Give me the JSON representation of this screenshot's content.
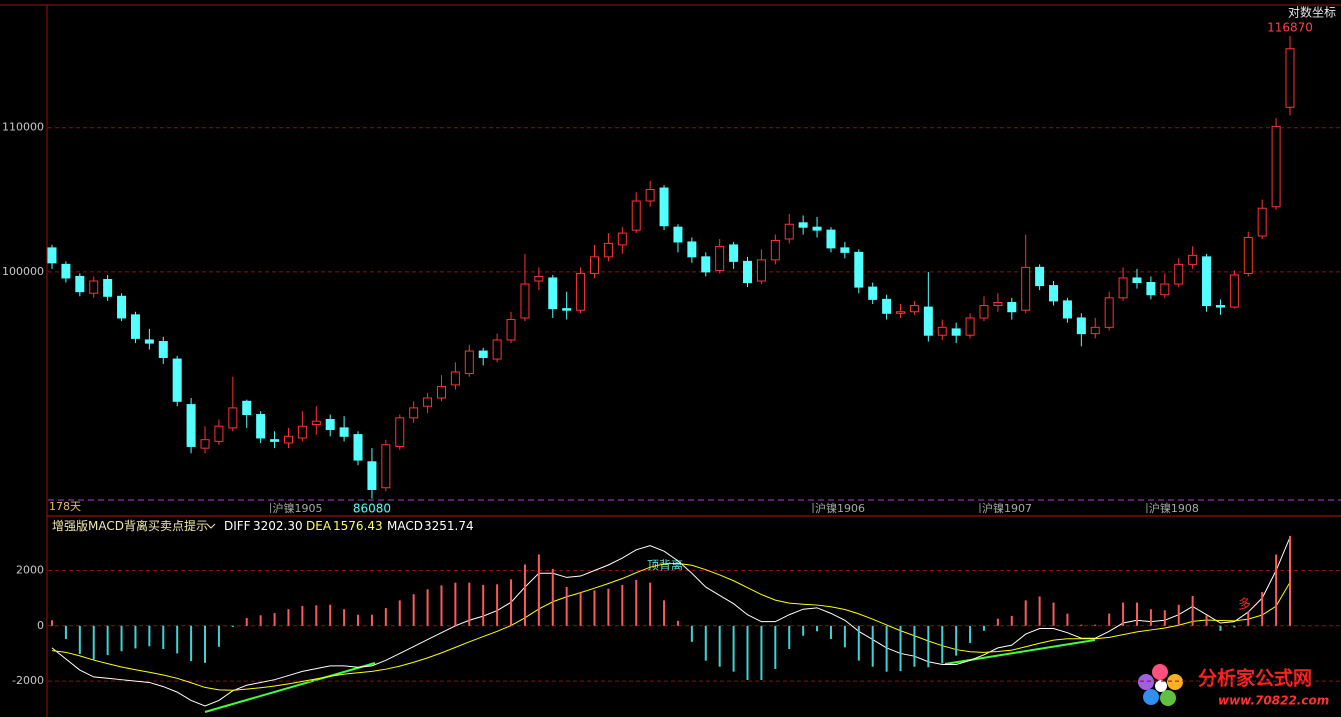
{
  "chart_data": [
    {
      "type": "candlestick",
      "log_scale": true,
      "scale_label": "对数坐标",
      "period_label": "178天",
      "up_color": "#ff3232",
      "down_color": "#54ffff",
      "grid": true,
      "ylim": [
        86000,
        119300
      ],
      "yticks": [
        100000,
        110000
      ],
      "categories": [
        null,
        null,
        null,
        null,
        null,
        null,
        null,
        null,
        null,
        null,
        null,
        null,
        null,
        null,
        null,
        null,
        "沪镍1905",
        null,
        null,
        null,
        null,
        null,
        null,
        null,
        null,
        null,
        null,
        null,
        null,
        null,
        null,
        null,
        null,
        null,
        null,
        null,
        null,
        null,
        null,
        null,
        null,
        null,
        null,
        null,
        null,
        null,
        null,
        null,
        null,
        null,
        null,
        null,
        null,
        null,
        null,
        "沪镍1906",
        null,
        null,
        null,
        null,
        null,
        null,
        null,
        null,
        null,
        null,
        null,
        "沪镍1907",
        null,
        null,
        null,
        null,
        null,
        null,
        null,
        null,
        null,
        null,
        null,
        "沪镍1908",
        null,
        null,
        null,
        null,
        null,
        null,
        null,
        null,
        null,
        null
      ],
      "open": [
        101600,
        100500,
        99700,
        98600,
        99500,
        98400,
        97200,
        95600,
        95500,
        94400,
        91600,
        89000,
        89400,
        90200,
        91800,
        91000,
        89500,
        89300,
        89600,
        90400,
        90700,
        90200,
        89800,
        88200,
        86700,
        89100,
        90800,
        91500,
        92000,
        92800,
        93500,
        94900,
        94400,
        95600,
        97000,
        99400,
        99600,
        97600,
        97500,
        99900,
        101000,
        101800,
        102800,
        104800,
        105700,
        103000,
        102000,
        101000,
        100100,
        101800,
        100700,
        99400,
        100800,
        102200,
        103300,
        103000,
        102800,
        101600,
        101300,
        99000,
        98200,
        97300,
        97400,
        97700,
        95900,
        96300,
        95900,
        97000,
        97800,
        98000,
        97500,
        100300,
        99100,
        98100,
        97000,
        96000,
        96400,
        98300,
        99600,
        99300,
        98500,
        99200,
        100500,
        101000,
        97800,
        97700,
        99900,
        102400,
        104400,
        111500
      ],
      "high": [
        101800,
        100700,
        99900,
        99700,
        99800,
        98600,
        97400,
        96300,
        95800,
        94600,
        92000,
        90300,
        90700,
        93300,
        91900,
        91200,
        90000,
        90200,
        91200,
        91500,
        91000,
        90900,
        90000,
        89000,
        89500,
        91000,
        91800,
        92300,
        93400,
        94200,
        95300,
        95100,
        96000,
        97400,
        101200,
        100300,
        99800,
        98700,
        100300,
        101800,
        102600,
        103000,
        105400,
        106200,
        105900,
        103200,
        102300,
        101300,
        102200,
        102000,
        101000,
        101500,
        102500,
        103900,
        103800,
        103700,
        103000,
        102000,
        101500,
        99300,
        98500,
        97900,
        98100,
        100000,
        96900,
        96700,
        97300,
        98400,
        98600,
        98300,
        102500,
        100500,
        99400,
        98300,
        97300,
        97000,
        98700,
        100300,
        100200,
        99700,
        99900,
        100900,
        101700,
        101200,
        98200,
        100100,
        102700,
        104900,
        110700,
        116870
      ],
      "low": [
        100200,
        99300,
        98400,
        98300,
        98100,
        96800,
        95400,
        95000,
        94100,
        91500,
        88700,
        88700,
        89200,
        90000,
        90200,
        89300,
        89000,
        89000,
        89400,
        89800,
        89700,
        89400,
        88000,
        86080,
        86500,
        88900,
        90500,
        91100,
        91800,
        92500,
        93300,
        94000,
        94200,
        95400,
        96800,
        98800,
        97000,
        96900,
        97300,
        99600,
        100700,
        101200,
        102600,
        104400,
        102800,
        101300,
        100600,
        99700,
        99900,
        100200,
        99000,
        99200,
        100500,
        101900,
        102500,
        102300,
        101300,
        100900,
        98600,
        97900,
        96900,
        97000,
        97200,
        95500,
        95600,
        95400,
        95700,
        96800,
        97400,
        96900,
        97300,
        98800,
        97800,
        96700,
        95200,
        95700,
        96200,
        98100,
        98900,
        98200,
        98300,
        99000,
        100200,
        97400,
        97200,
        97600,
        99700,
        102200,
        104200,
        110900
      ],
      "close": [
        100600,
        99600,
        98700,
        99400,
        98400,
        97000,
        95700,
        95400,
        94500,
        91800,
        89100,
        89500,
        90300,
        91400,
        91000,
        89600,
        89400,
        89700,
        90300,
        90600,
        90100,
        89700,
        88300,
        86600,
        89200,
        90800,
        91400,
        92000,
        92700,
        93600,
        94900,
        94500,
        95600,
        96900,
        99200,
        99700,
        97600,
        97500,
        99900,
        101000,
        101900,
        102600,
        104800,
        105600,
        103100,
        102000,
        101000,
        100000,
        101700,
        100700,
        99300,
        100800,
        102100,
        103200,
        103000,
        102800,
        101600,
        101300,
        99000,
        98200,
        97300,
        97400,
        97800,
        95900,
        96400,
        95900,
        97000,
        97800,
        98000,
        97400,
        100300,
        99100,
        98100,
        97000,
        96000,
        96400,
        98300,
        99600,
        99300,
        98500,
        99200,
        100500,
        101100,
        97800,
        97700,
        99800,
        102300,
        104300,
        110100,
        115900
      ]
    },
    {
      "type": "macd",
      "title": "增强版MACD背离买卖点提示",
      "grid": true,
      "ylim": [
        -3300,
        3900
      ],
      "yticks": [
        -2000,
        0,
        2000
      ],
      "series": [
        {
          "name": "DIFF",
          "color": "#ffffff",
          "last_value_label": "3202.30",
          "values": [
            -800,
            -1200,
            -1600,
            -1850,
            -1900,
            -1950,
            -2000,
            -2050,
            -2200,
            -2400,
            -2700,
            -2900,
            -2700,
            -2350,
            -2150,
            -2050,
            -1950,
            -1800,
            -1650,
            -1550,
            -1450,
            -1450,
            -1500,
            -1450,
            -1250,
            -1000,
            -750,
            -500,
            -250,
            0,
            200,
            350,
            550,
            850,
            1400,
            1900,
            1900,
            1750,
            1800,
            2000,
            2200,
            2450,
            2750,
            2900,
            2700,
            2350,
            1900,
            1400,
            1100,
            800,
            400,
            150,
            150,
            400,
            600,
            650,
            450,
            200,
            -200,
            -500,
            -800,
            -1000,
            -1100,
            -1300,
            -1400,
            -1400,
            -1250,
            -1050,
            -800,
            -700,
            -300,
            -100,
            -100,
            -250,
            -450,
            -450,
            -200,
            100,
            200,
            150,
            200,
            400,
            700,
            400,
            100,
            150,
            500,
            1000,
            2000,
            3202.3
          ]
        },
        {
          "name": "DEA",
          "color": "#ffff00",
          "last_value_label": "1576.43",
          "values": [
            -900,
            -960,
            -1090,
            -1240,
            -1370,
            -1490,
            -1590,
            -1680,
            -1780,
            -1900,
            -2060,
            -2230,
            -2320,
            -2330,
            -2290,
            -2240,
            -2180,
            -2100,
            -2010,
            -1920,
            -1830,
            -1750,
            -1700,
            -1650,
            -1570,
            -1460,
            -1320,
            -1160,
            -980,
            -780,
            -580,
            -390,
            -200,
            10,
            290,
            610,
            870,
            1050,
            1200,
            1360,
            1530,
            1710,
            1920,
            2120,
            2240,
            2260,
            2190,
            2030,
            1840,
            1630,
            1380,
            1130,
            930,
            820,
            780,
            750,
            690,
            590,
            430,
            240,
            30,
            -180,
            -360,
            -550,
            -720,
            -860,
            -940,
            -960,
            -930,
            -880,
            -760,
            -630,
            -520,
            -470,
            -470,
            -470,
            -420,
            -320,
            -220,
            -150,
            -80,
            20,
            160,
            210,
            190,
            180,
            240,
            390,
            710,
            1576.43
          ]
        },
        {
          "name": "MACD",
          "color": "#ffffff",
          "up_color": "#ff5a5a",
          "down_color": "#3ad6d6",
          "last_value_label": "3251.74",
          "values": [
            200,
            -480,
            -1020,
            -1220,
            -1060,
            -920,
            -820,
            -740,
            -840,
            -1000,
            -1280,
            -1340,
            -760,
            -40,
            280,
            380,
            460,
            600,
            720,
            740,
            760,
            600,
            400,
            400,
            640,
            920,
            1140,
            1320,
            1460,
            1560,
            1560,
            1480,
            1500,
            1680,
            2220,
            2580,
            2060,
            1400,
            1200,
            1280,
            1340,
            1480,
            1660,
            1560,
            920,
            180,
            -580,
            -1260,
            -1480,
            -1660,
            -1960,
            -1960,
            -1560,
            -840,
            -360,
            -200,
            -480,
            -780,
            -1260,
            -1480,
            -1660,
            -1640,
            -1480,
            -1500,
            -1360,
            -1080,
            -620,
            -180,
            260,
            360,
            920,
            1060,
            840,
            440,
            40,
            40,
            440,
            840,
            840,
            600,
            560,
            760,
            1080,
            380,
            -180,
            -60,
            520,
            1220,
            2580,
            3251.74
          ]
        }
      ],
      "annotations": [
        {
          "text": "顶背离"
        },
        {
          "text": "多"
        }
      ]
    }
  ],
  "watermark": {
    "title": "分析家公式网",
    "url": "www.70822.com"
  }
}
